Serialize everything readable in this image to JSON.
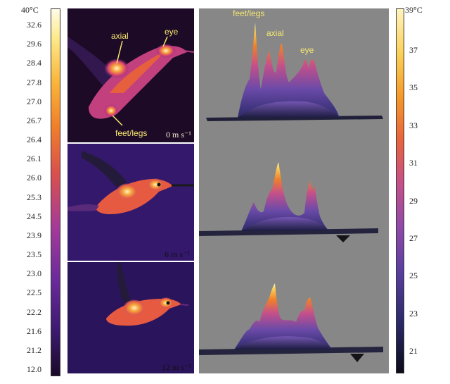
{
  "left_scale": {
    "top_label": "40°C",
    "ticks": [
      "32.6",
      "29.6",
      "28.4",
      "27.8",
      "27.0",
      "26.7",
      "26.4",
      "26.1",
      "26.0",
      "25.3",
      "24.5",
      "23.9",
      "23.5",
      "23.0",
      "22.5",
      "22.2",
      "21.6",
      "21.2",
      "12.0"
    ]
  },
  "right_scale": {
    "top_label": "39°C",
    "ticks": [
      "37",
      "35",
      "33",
      "31",
      "29",
      "27",
      "25",
      "23",
      "21"
    ]
  },
  "thermal_panels": [
    {
      "speed": "0 m s⁻¹",
      "annotations": {
        "axial": "axial",
        "eye": "eye",
        "feet": "feet/legs"
      }
    },
    {
      "speed": "6 m s⁻¹"
    },
    {
      "speed": "12 m s⁻¹"
    }
  ],
  "surface_plot": {
    "annotations": {
      "feet": "feet/legs",
      "axial": "axial",
      "eye": "eye"
    }
  },
  "colors": {
    "panel_background": "#878787",
    "annotation_text": "#f6e870"
  }
}
